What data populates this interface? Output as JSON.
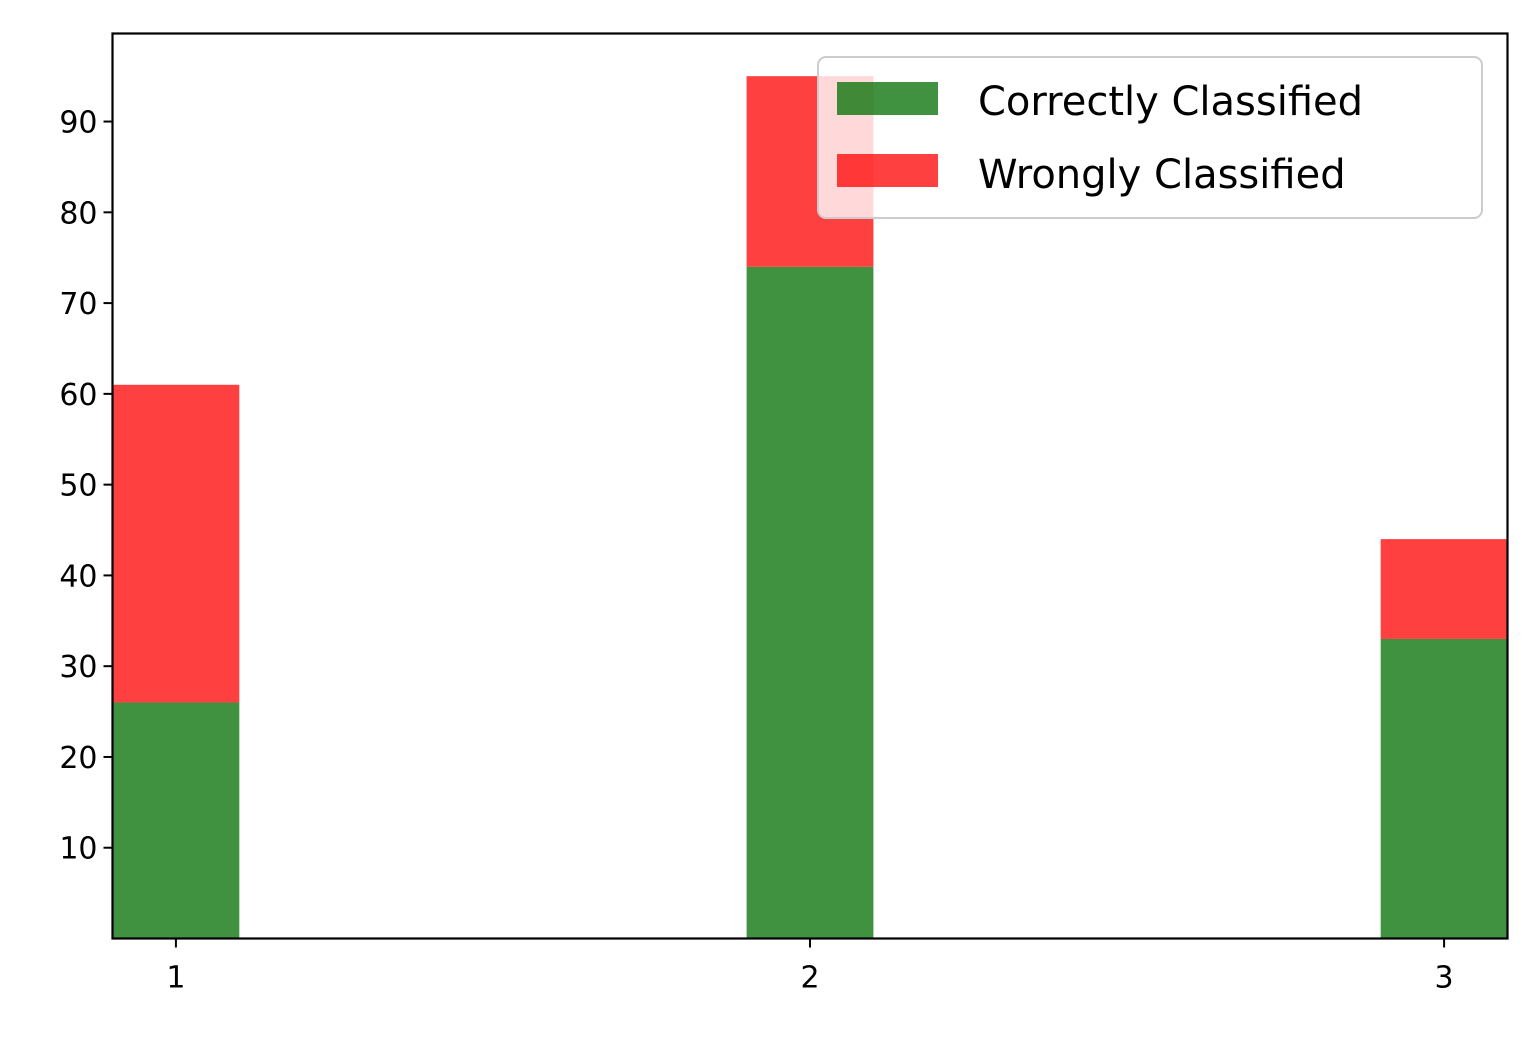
{
  "chart_data": {
    "type": "bar",
    "stacked": true,
    "title": "",
    "xlabel": "",
    "ylabel": "",
    "x": [
      1,
      2,
      3
    ],
    "x_ticks": [
      "1",
      "2",
      "3"
    ],
    "y_ticks": [
      "10",
      "20",
      "30",
      "40",
      "50",
      "60",
      "70",
      "80",
      "90"
    ],
    "xlim": [
      0.9,
      3.1
    ],
    "ylim": [
      0,
      99.7
    ],
    "grid": false,
    "legend_position": "top-right",
    "bar_width": 0.2,
    "series": [
      {
        "name": "Correctly Classified",
        "values": [
          26,
          74,
          33
        ],
        "color": "#006d00",
        "alpha": 0.75
      },
      {
        "name": "Wrongly Classified",
        "values": [
          35,
          21,
          11
        ],
        "color": "#ff0000",
        "alpha": 0.75
      }
    ]
  }
}
